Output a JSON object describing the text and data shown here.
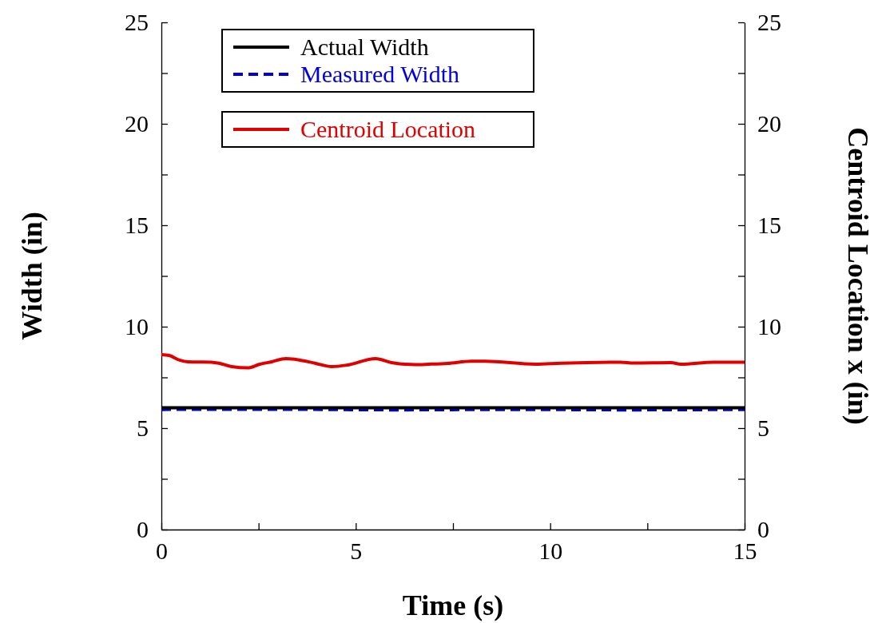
{
  "chart_data": {
    "type": "line",
    "xlabel": "Time (s)",
    "ylabel": "Width (in)",
    "y2label": "Centroid Location x (in)",
    "xlim": [
      0,
      15
    ],
    "xticks": [
      0,
      {
        "value": 2.5,
        "label": null
      },
      5,
      {
        "value": 7.5,
        "label": null
      },
      10,
      {
        "value": 12.5,
        "label": null
      },
      15
    ],
    "ylim": [
      0,
      25
    ],
    "yticks": [
      0,
      {
        "value": 2.5,
        "label": null
      },
      5,
      {
        "value": 7.5,
        "label": null
      },
      10,
      {
        "value": 12.5,
        "label": null
      },
      15,
      {
        "value": 17.5,
        "label": null
      },
      20,
      {
        "value": 22.5,
        "label": null
      },
      25
    ],
    "y2lim": [
      0,
      25
    ],
    "y2ticks": [
      0,
      {
        "value": 2.5,
        "label": null
      },
      5,
      {
        "value": 7.5,
        "label": null
      },
      10,
      {
        "value": 12.5,
        "label": null
      },
      15,
      {
        "value": 17.5,
        "label": null
      },
      20,
      {
        "value": 22.5,
        "label": null
      },
      25
    ],
    "legend": "top left",
    "grid": false,
    "marker": "none",
    "series": [
      {
        "name": "Actual Width",
        "color": "#000000",
        "line_style": "solid",
        "x": [
          0,
          15
        ],
        "values": [
          6.0,
          6.0
        ]
      },
      {
        "name": "Measured Width",
        "color": "#0000dd",
        "line_style": "dashed",
        "x": [
          0,
          3,
          6,
          9,
          12,
          15
        ],
        "values": [
          5.92,
          5.93,
          5.9,
          5.92,
          5.9,
          5.92
        ]
      },
      {
        "name": "Centroid Location",
        "color": "#e00000",
        "line_style": "solid",
        "axis": "y2",
        "x": [
          0,
          0.2,
          0.47,
          0.68,
          1.29,
          1.5,
          1.81,
          2.22,
          2.53,
          2.84,
          3.2,
          3.45,
          3.97,
          4.38,
          4.79,
          5.51,
          5.92,
          6.53,
          6.88,
          7.36,
          7.97,
          8.32,
          9.62,
          10.29,
          11.81,
          12.14,
          13.11,
          13.36,
          14.2,
          15
        ],
        "values": [
          8.62,
          8.58,
          8.35,
          8.27,
          8.25,
          8.19,
          8.03,
          7.97,
          8.15,
          8.27,
          8.43,
          8.39,
          8.19,
          8.03,
          8.11,
          8.43,
          8.23,
          8.13,
          8.15,
          8.19,
          8.3,
          8.3,
          8.15,
          8.2,
          8.25,
          8.21,
          8.23,
          8.15,
          8.25,
          8.25
        ]
      }
    ]
  }
}
